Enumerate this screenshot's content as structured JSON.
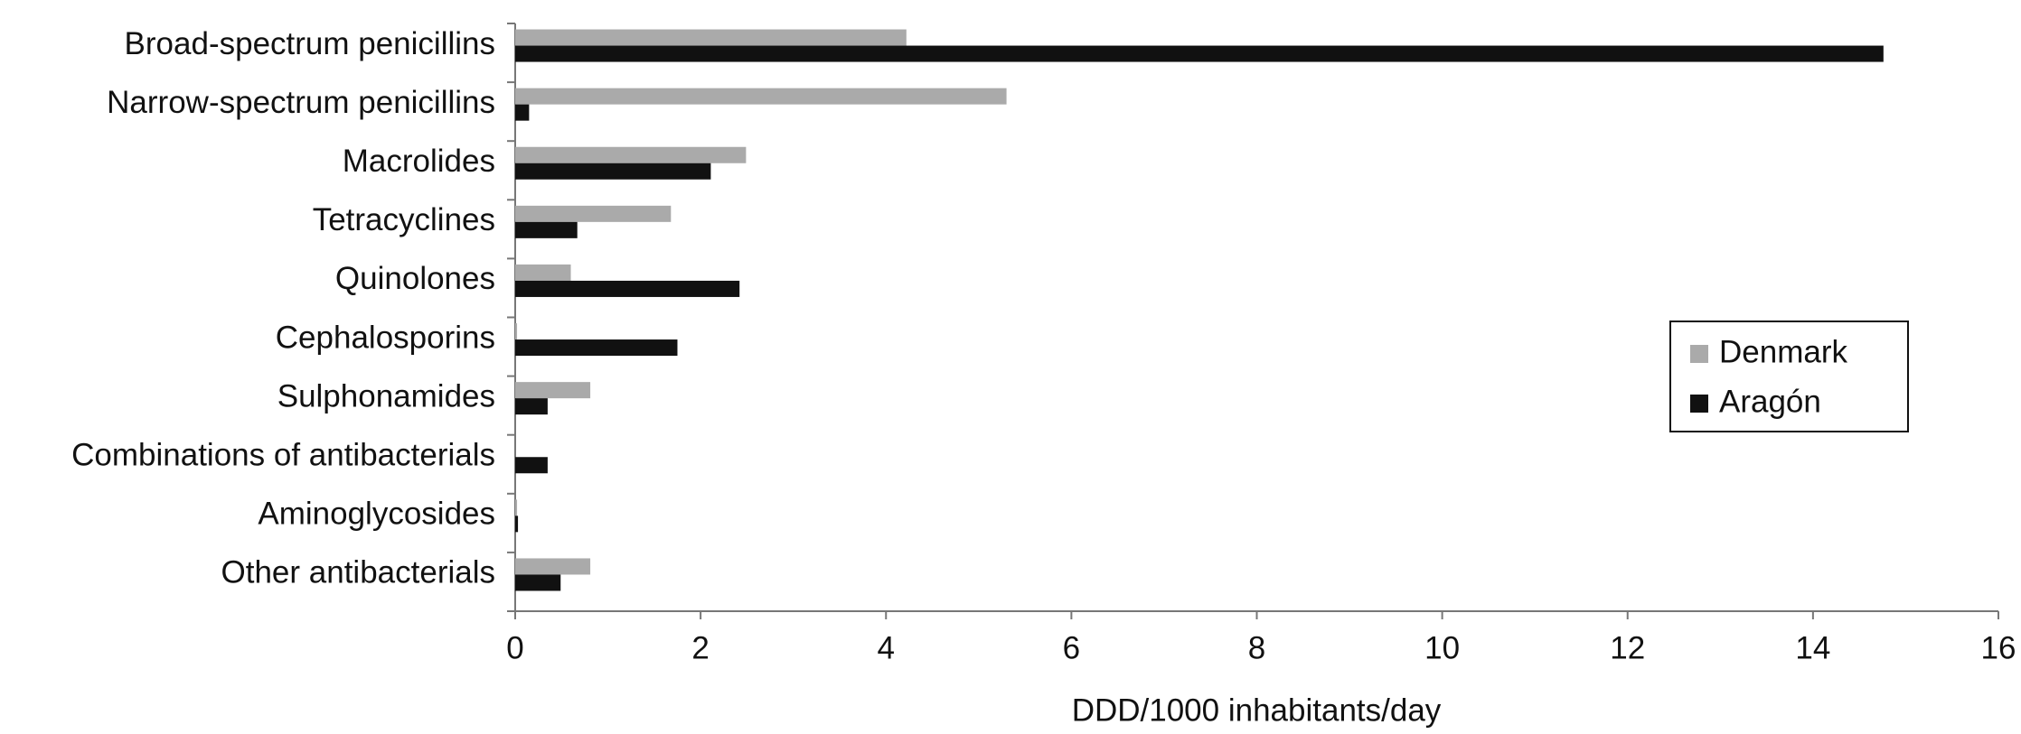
{
  "chart_data": {
    "type": "hbar",
    "xlabel": "DDD/1000 inhabitants/day",
    "categories": [
      "Broad-spectrum penicillins",
      "Narrow-spectrum penicillins",
      "Macrolides",
      "Tetracyclines",
      "Quinolones",
      "Cephalosporins",
      "Sulphonamides",
      "Combinations of antibacterials",
      "Aminoglycosides",
      "Other antibacterials"
    ],
    "series": [
      {
        "name": "Denmark",
        "color": "#aaaaaa",
        "values": [
          4.22,
          5.3,
          2.49,
          1.68,
          0.6,
          0.02,
          0.81,
          0,
          0.02,
          0.81
        ]
      },
      {
        "name": "Aragón",
        "color": "#111111",
        "values": [
          14.76,
          0.15,
          2.11,
          0.67,
          2.42,
          1.75,
          0.35,
          0.35,
          0.03,
          0.49
        ]
      }
    ],
    "xlim": [
      0,
      16
    ],
    "xticks": [
      0,
      2,
      4,
      6,
      8,
      10,
      12,
      14,
      16
    ],
    "grid": false,
    "legend": "right"
  }
}
